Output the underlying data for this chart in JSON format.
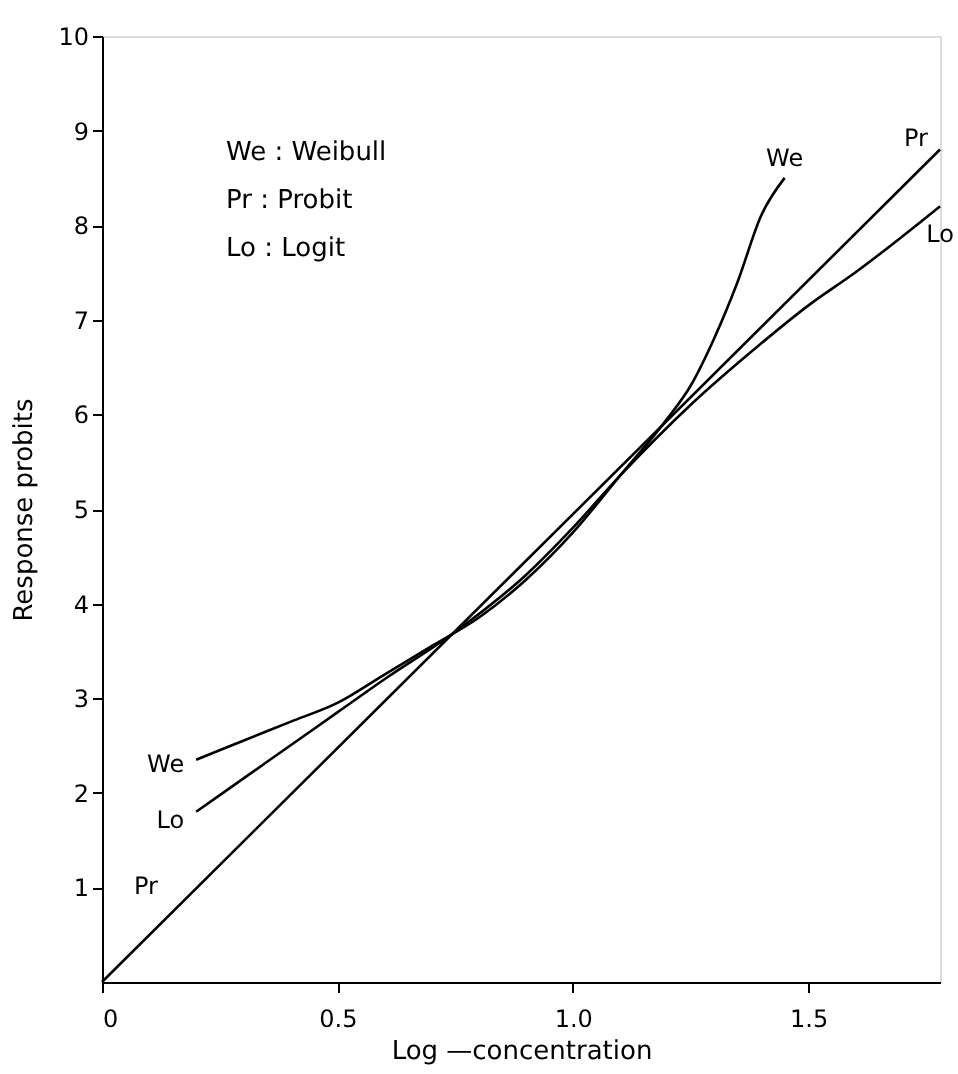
{
  "chart_data": {
    "type": "line",
    "xlabel": "Log —concentration",
    "ylabel": "Response  probits",
    "xlim": [
      0,
      1.78
    ],
    "ylim": [
      0,
      10
    ],
    "xticks": [
      0,
      {
        "value": 0.5,
        "label": "0.5"
      },
      {
        "value": 1.0,
        "label": "1.0"
      },
      {
        "value": 1.5,
        "label": "1.5"
      }
    ],
    "yticks": [
      1,
      2,
      3,
      4,
      5,
      6,
      7,
      8,
      9,
      10
    ],
    "grid": false,
    "marker": "none",
    "line_style": "solid",
    "series": [
      {
        "name": "We",
        "color": "#000000",
        "x": [
          0.2,
          0.3,
          0.4,
          0.5,
          0.6,
          0.7,
          0.8,
          0.9,
          1.0,
          1.1,
          1.2,
          1.25,
          1.3,
          1.35,
          1.4,
          1.45
        ],
        "values": [
          2.35,
          2.55,
          2.75,
          2.95,
          3.25,
          3.55,
          3.85,
          4.25,
          4.75,
          5.35,
          5.95,
          6.3,
          6.8,
          7.4,
          8.1,
          8.5
        ]
      },
      {
        "name": "Pr",
        "color": "#000000",
        "x": [
          0,
          1.78
        ],
        "values": [
          0,
          8.8
        ]
      },
      {
        "name": "Lo",
        "color": "#000000",
        "x": [
          0.2,
          0.3,
          0.4,
          0.5,
          0.6,
          0.75,
          0.9,
          1.0,
          1.1,
          1.25,
          1.4,
          1.5,
          1.6,
          1.78
        ],
        "values": [
          1.8,
          2.15,
          2.5,
          2.85,
          3.2,
          3.7,
          4.3,
          4.8,
          5.35,
          6.1,
          6.75,
          7.15,
          7.5,
          8.2
        ]
      }
    ],
    "annotations": [
      "We : Weibull",
      "Pr  : Probit",
      "Lo  : Logit"
    ]
  }
}
